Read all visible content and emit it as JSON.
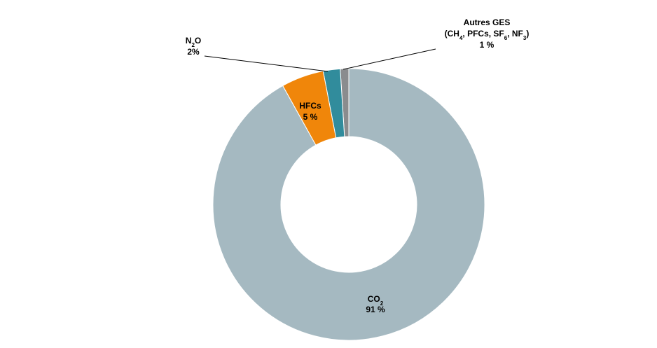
{
  "chart_data": {
    "type": "pie",
    "subtype": "donut",
    "title": "",
    "categories": [
      "Autres GES",
      "N2O",
      "HFCs",
      "CO2"
    ],
    "values": [
      1,
      2,
      5,
      91
    ],
    "start": "12 o'clock, counter-clockwise",
    "legend": "none",
    "colors": [
      "#8a8c8e",
      "#318c9c",
      "#f0860a",
      "#a5b9c1"
    ],
    "labels": {
      "autres": {
        "line1": "Autres GES",
        "ch": "(CH",
        "ch_sub": "4",
        "pfc": ", PFCs, SF",
        "sf_sub": "6",
        "nf": ", NF",
        "nf_sub": "3",
        "close": ")",
        "value": "1 %"
      },
      "n2o": {
        "n": "N",
        "n_sub": "2",
        "o": "O",
        "value": "2%"
      },
      "hfc": {
        "name": "HFCs",
        "value": "5 %"
      },
      "co2": {
        "co": "CO",
        "co_sub": "2",
        "value": "91 %"
      }
    }
  }
}
